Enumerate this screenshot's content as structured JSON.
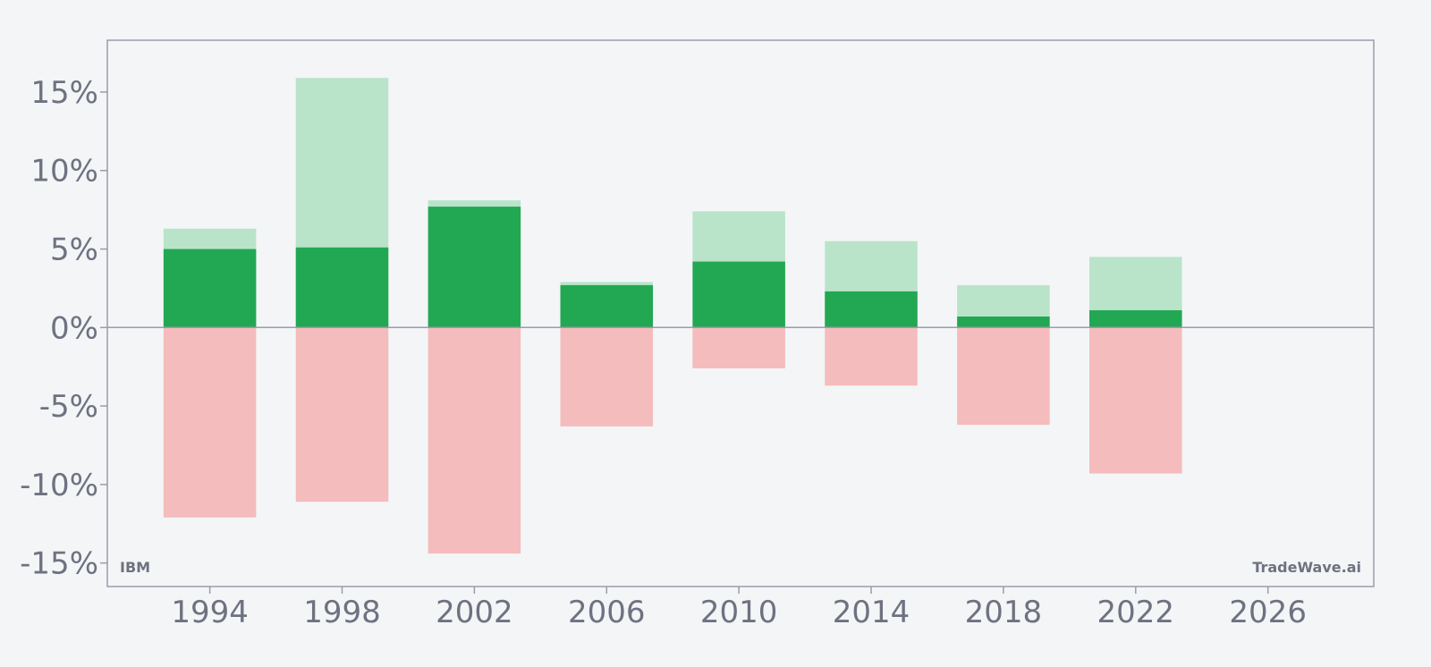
{
  "chart_data": {
    "type": "bar",
    "categories": [
      "1994",
      "1998",
      "2002",
      "2006",
      "2010",
      "2014",
      "2018",
      "2022"
    ],
    "x": [
      1994,
      1998,
      2002,
      2006,
      2010,
      2014,
      2018,
      2022
    ],
    "series": [
      {
        "values": [
          5.0,
          5.1,
          7.7,
          2.7,
          4.2,
          2.3,
          0.7,
          1.1
        ]
      },
      {
        "values": [
          6.3,
          15.9,
          8.1,
          2.9,
          7.4,
          5.5,
          2.7,
          4.5
        ]
      },
      {
        "values": [
          -12.1,
          -11.1,
          -14.4,
          -6.3,
          -2.6,
          -3.7,
          -6.2,
          -9.3
        ]
      }
    ],
    "xlim": [
      1990.9,
      2029.2
    ],
    "ylim": [
      -16.5,
      18.3
    ],
    "yticks": [
      15,
      10,
      5,
      0,
      -5,
      -10,
      -15
    ],
    "ytick_labels": [
      "15%",
      "10%",
      "5%",
      "0%",
      "-5%",
      "-10%",
      "-15%"
    ],
    "xticks": [
      1994,
      1998,
      2002,
      2006,
      2010,
      2014,
      2018,
      2022,
      2026
    ],
    "xtick_labels": [
      "1994",
      "1998",
      "2002",
      "2006",
      "2010",
      "2014",
      "2018",
      "2022",
      "2026"
    ],
    "bar_width_years": 2.8,
    "grid": false,
    "colors": {
      "dark_green": "#22a853",
      "light_green": "#b9e4c9",
      "light_red": "#f4bcbc",
      "axis": "#9a9daa",
      "text": "#6e7280",
      "background": "#f4f5f7"
    }
  },
  "watermarks": {
    "ticker": "IBM",
    "brand": "TradeWave.ai"
  }
}
